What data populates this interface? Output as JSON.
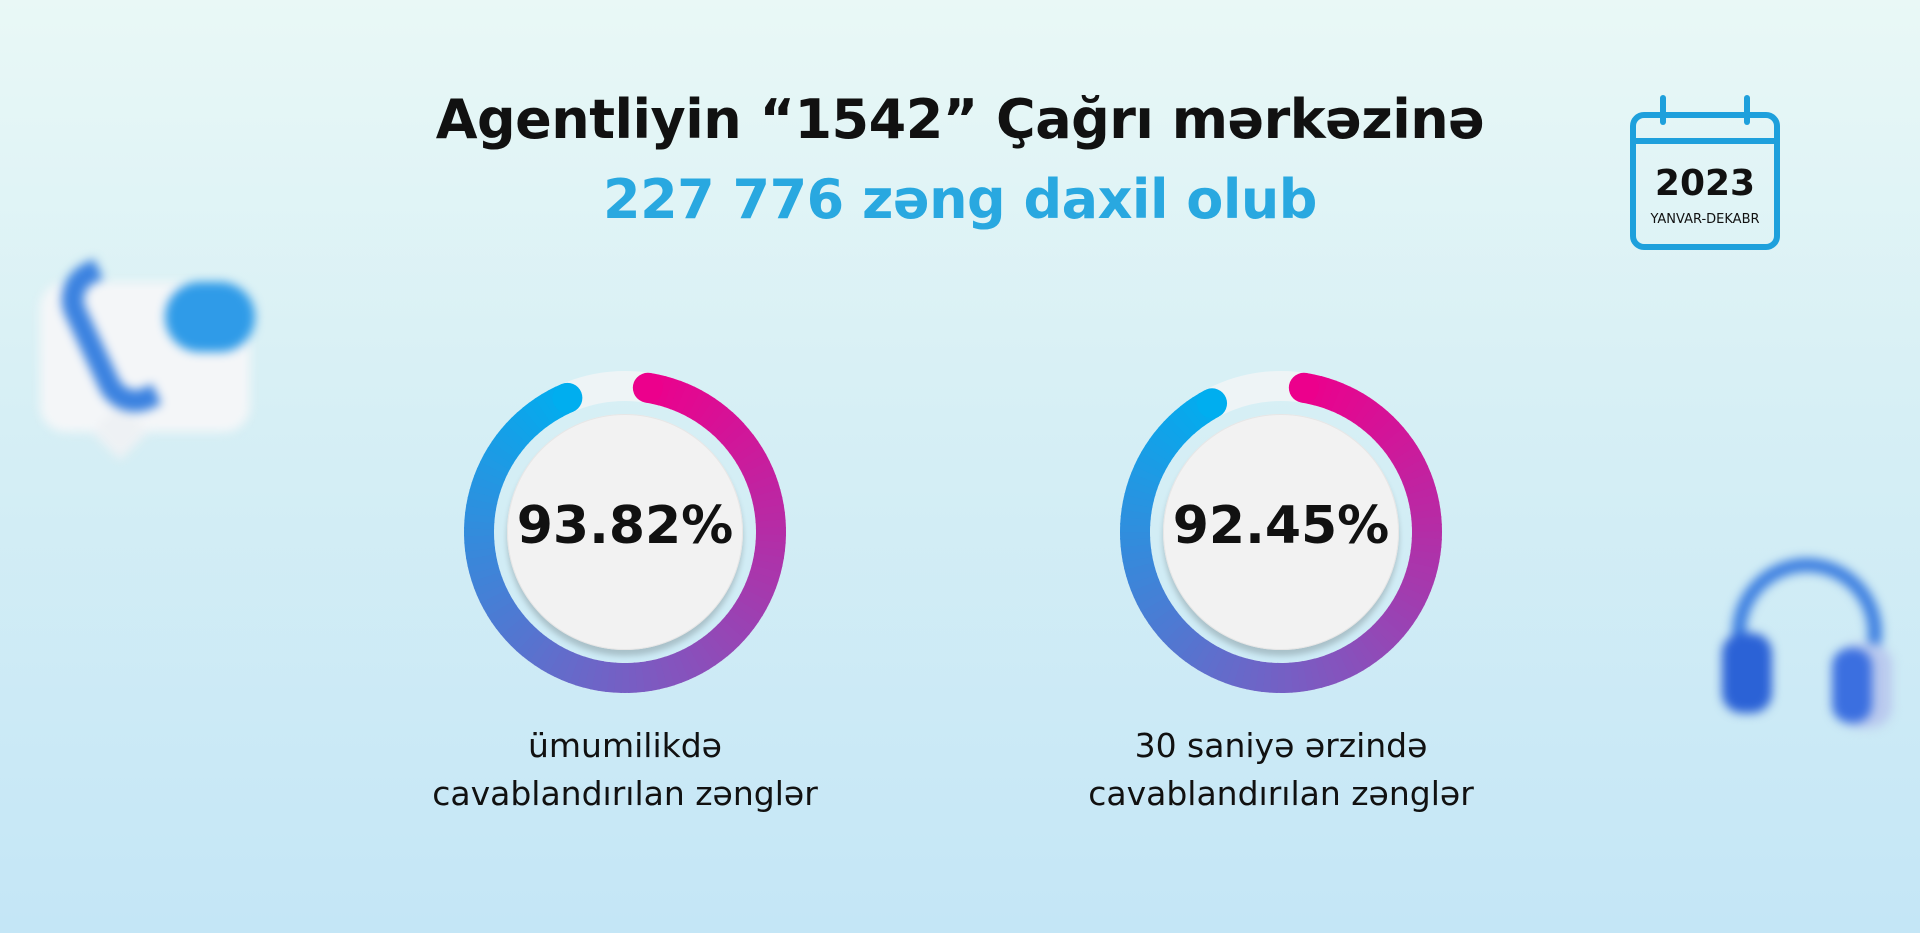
{
  "header": {
    "line1": "Agentliyin “1542” Çağrı mərkəzinə",
    "line2": "227 776 zəng daxil olub"
  },
  "calendar": {
    "year": "2023",
    "range": "YANVAR-DEKABR",
    "icon": "calendar-icon"
  },
  "gauges": [
    {
      "value": "93.82%",
      "percent": 93.82,
      "label1": "ümumilikdə",
      "label2": "cavablandırılan zənglər"
    },
    {
      "value": "92.45%",
      "percent": 92.45,
      "label1": "30 saniyə ərzində",
      "label2": "cavablandırılan zənglər"
    }
  ],
  "colors": {
    "accent": "#29a8e0",
    "gradient_start": "#ec008c",
    "gradient_mid": "#7a5cc2",
    "gradient_end": "#00aeef"
  },
  "decorations": [
    "phone-chat-icon",
    "headphones-icon"
  ]
}
